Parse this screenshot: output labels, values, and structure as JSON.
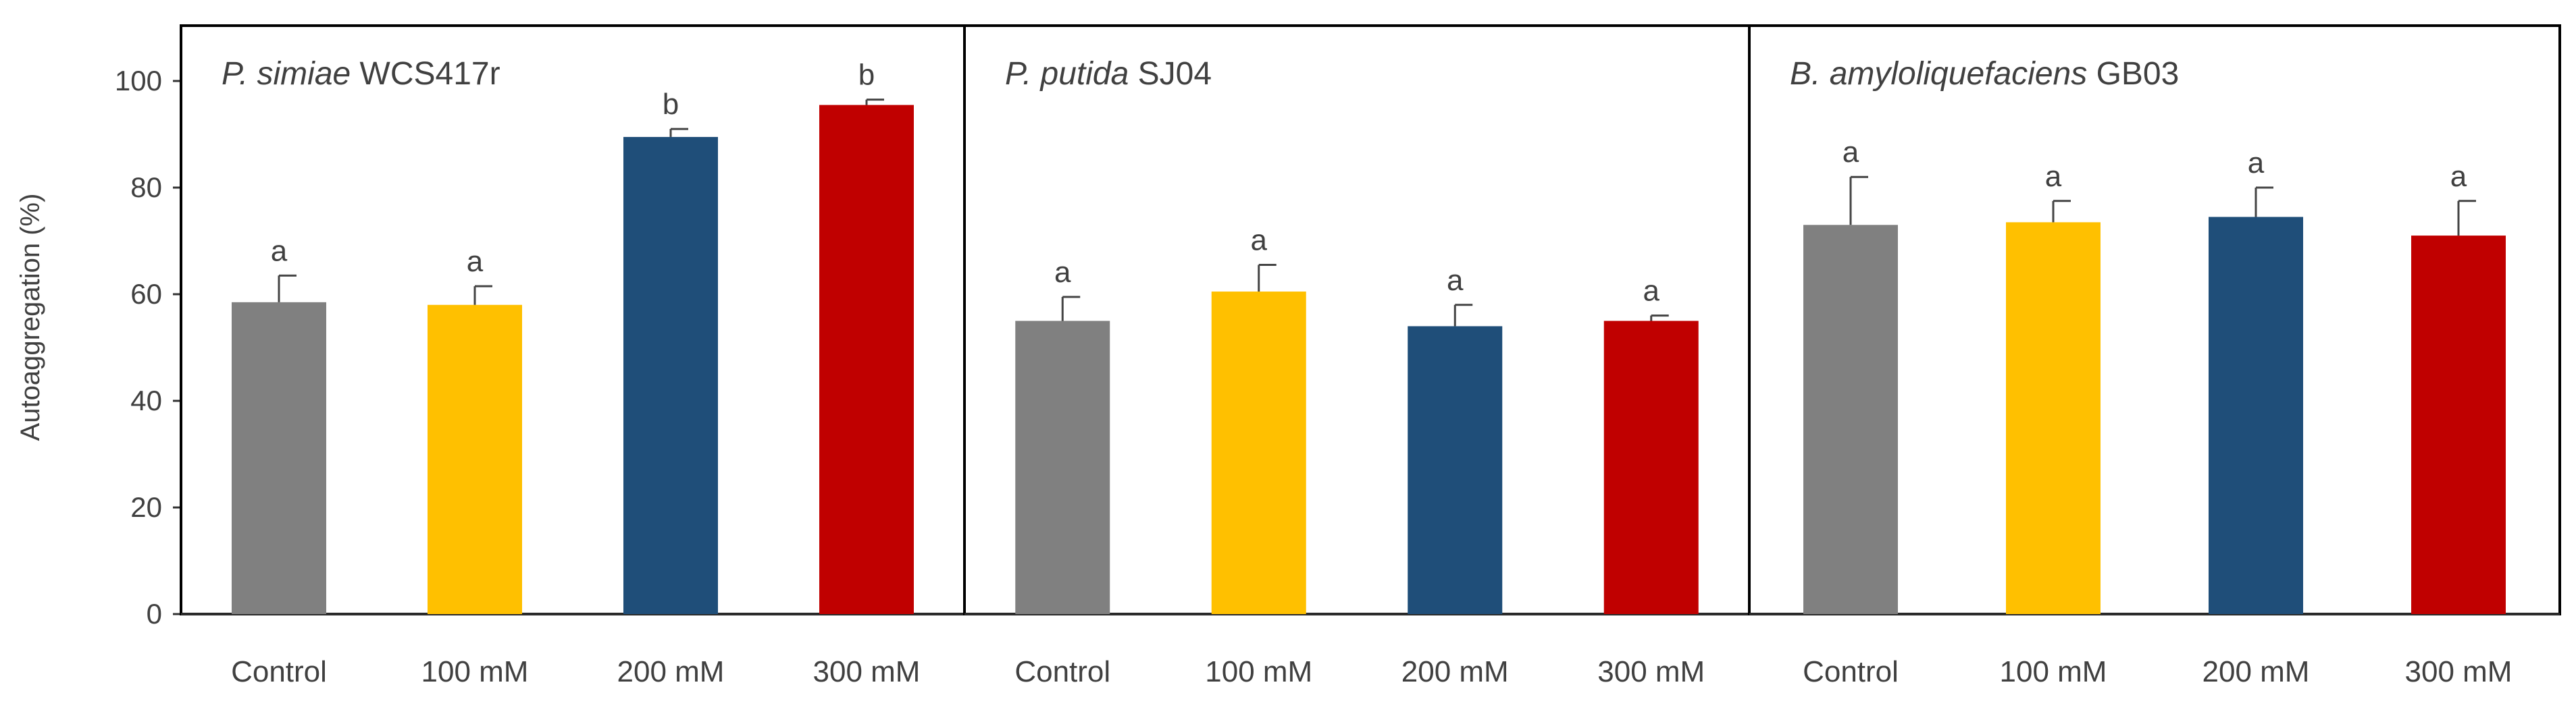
{
  "chart_data": {
    "type": "bar",
    "ylabel": "Autoaggregation (%)",
    "ylim": [
      0,
      100
    ],
    "yticks": [
      "0",
      "20",
      "40",
      "60",
      "80",
      "100"
    ],
    "categories": [
      "Control",
      "100 mM",
      "200 mM",
      "300 mM"
    ],
    "colors": [
      "#808080",
      "#ffc000",
      "#1f4e79",
      "#c00000"
    ],
    "panels": [
      {
        "title_italic": "P. simiae",
        "title_rest": " WCS417r",
        "values": [
          58.5,
          58,
          89.5,
          95.5
        ],
        "errors": [
          5,
          3.5,
          1.5,
          1
        ],
        "letters": [
          "a",
          "a",
          "b",
          "b"
        ]
      },
      {
        "title_italic": "P. putida",
        "title_rest": " SJ04",
        "values": [
          55,
          60.5,
          54,
          55
        ],
        "errors": [
          4.5,
          5,
          4,
          1
        ],
        "letters": [
          "a",
          "a",
          "a",
          "a"
        ]
      },
      {
        "title_italic": "B. amyloliquefaciens",
        "title_rest": " GB03",
        "values": [
          73,
          73.5,
          74.5,
          71
        ],
        "errors": [
          9,
          4,
          5.5,
          6.5
        ],
        "letters": [
          "a",
          "a",
          "a",
          "a"
        ]
      }
    ]
  }
}
